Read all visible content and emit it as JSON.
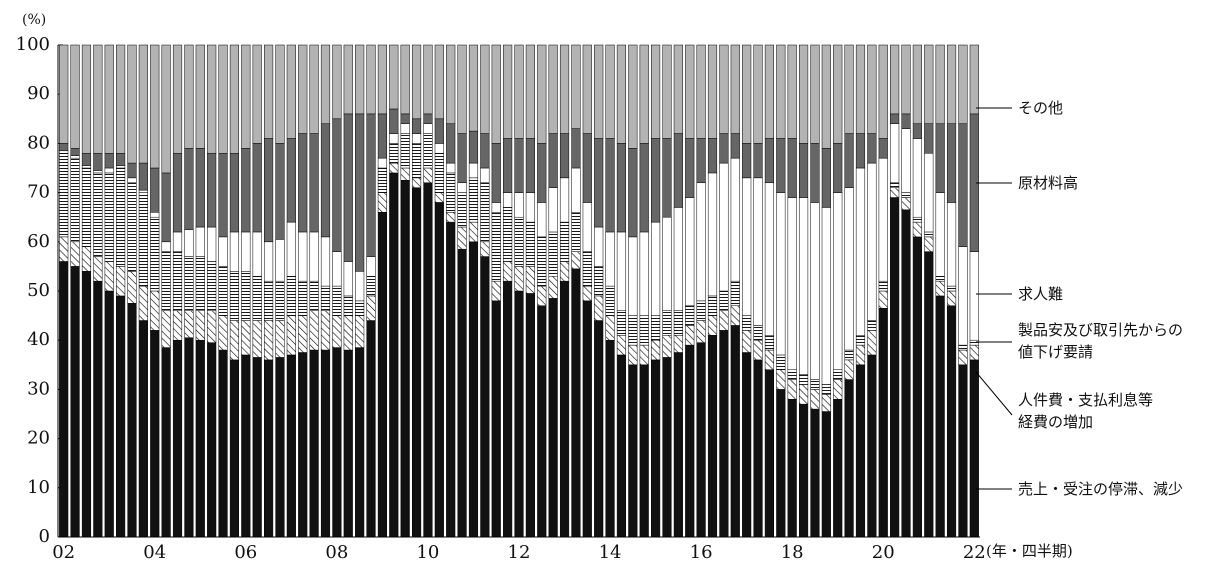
{
  "chart_data": {
    "type": "stacked_bar",
    "y_label": "(%)",
    "x_label": "(年・四半期)",
    "categories": [
      "02",
      null,
      null,
      null,
      null,
      null,
      null,
      null,
      "04",
      null,
      null,
      null,
      null,
      null,
      null,
      null,
      "06",
      null,
      null,
      null,
      null,
      null,
      null,
      null,
      "08",
      null,
      null,
      null,
      null,
      null,
      null,
      null,
      "10",
      null,
      null,
      null,
      null,
      null,
      null,
      null,
      "12",
      null,
      null,
      null,
      null,
      null,
      null,
      null,
      "14",
      null,
      null,
      null,
      null,
      null,
      null,
      null,
      "16",
      null,
      null,
      null,
      null,
      null,
      null,
      null,
      "18",
      null,
      null,
      null,
      null,
      null,
      null,
      null,
      "20",
      null,
      null,
      null,
      null,
      null,
      null,
      null,
      "22"
    ],
    "ylim": [
      0,
      100
    ],
    "yticks": [
      0,
      10,
      20,
      30,
      40,
      50,
      60,
      70,
      80,
      90,
      100
    ],
    "series": [
      {
        "name": "売上・受注の停滞、減少",
        "color": "#111111",
        "pattern": "solid",
        "values": [
          56,
          55,
          54,
          52,
          50,
          49,
          47.5,
          44,
          42,
          38.5,
          40,
          40.5,
          40,
          39.5,
          38,
          36,
          37,
          36.5,
          36,
          36.5,
          37,
          37.5,
          38,
          38,
          38.5,
          38,
          38.5,
          44,
          66,
          74,
          72.5,
          71,
          72,
          68,
          64,
          58.5,
          60,
          57,
          48,
          52,
          50,
          49.5,
          47,
          48.5,
          52,
          54.5,
          48,
          44,
          40,
          37,
          35,
          35,
          36,
          36.5,
          37.5,
          39,
          39.5,
          41,
          42,
          43,
          37.5,
          36,
          34,
          30,
          28,
          27,
          26,
          25.5,
          28,
          32,
          35,
          37,
          46.5,
          69,
          66.5,
          61,
          58,
          49,
          47,
          35,
          36
        ]
      },
      {
        "name": "人件費・支払利息等\n経費の増加",
        "color": "#ffffff",
        "pattern": "diagonal",
        "values": [
          5,
          5,
          5,
          5,
          6,
          6,
          6.5,
          7,
          8,
          7.5,
          6,
          5.5,
          6,
          6.5,
          7,
          8,
          7,
          7.5,
          8,
          7.5,
          8,
          7.5,
          8,
          8,
          6.5,
          7,
          6.5,
          5,
          4,
          2,
          2.5,
          2,
          3,
          2,
          2,
          4.5,
          4,
          3,
          4,
          4,
          5,
          5.5,
          4,
          4.5,
          4,
          3.5,
          3,
          5,
          5,
          4,
          4,
          4,
          4,
          4.5,
          3.5,
          4,
          4.5,
          4,
          4,
          4,
          4.5,
          4,
          4,
          4,
          4,
          4,
          4,
          3.5,
          4,
          4,
          4,
          5,
          3.5,
          2,
          2.5,
          3,
          3,
          3,
          3,
          3,
          3
        ]
      },
      {
        "name": "製品安及び取引先からの\n値下げ要請",
        "color": "#ffffff",
        "pattern": "horizontal",
        "values": [
          17,
          17,
          16,
          17,
          18,
          20,
          18,
          19,
          15,
          12,
          12,
          11,
          11,
          10,
          10,
          10,
          10,
          9,
          8,
          8,
          8,
          7,
          6,
          5,
          6,
          4,
          3,
          4,
          5,
          4,
          7,
          7,
          7,
          8,
          8,
          7,
          9,
          12,
          14,
          11,
          10,
          9,
          10,
          9,
          8,
          8,
          7,
          6,
          6,
          5,
          6,
          6,
          5,
          5,
          5,
          4,
          4,
          4,
          4,
          5,
          3,
          3,
          3,
          3,
          2,
          2,
          2,
          2,
          2,
          2,
          2,
          2,
          2,
          1,
          1,
          1,
          1,
          1,
          1,
          1,
          1
        ]
      },
      {
        "name": "求人難",
        "color": "#ffffff",
        "pattern": "solid",
        "values": [
          0.5,
          0.5,
          0.5,
          0.5,
          1,
          0.5,
          1,
          0.5,
          1,
          2,
          4,
          5.5,
          6,
          7,
          6,
          8,
          8,
          9,
          8,
          8.5,
          11,
          10,
          10,
          10,
          7,
          7,
          6,
          4,
          2,
          2,
          2,
          2,
          2,
          2,
          2,
          2,
          3,
          3,
          2,
          3,
          5,
          6,
          7,
          9,
          9,
          9,
          10,
          8,
          11,
          16,
          16,
          17,
          19,
          19,
          21,
          22,
          24,
          25,
          26,
          25,
          28,
          30,
          31,
          33,
          35,
          36,
          36,
          36,
          36,
          33,
          34,
          32,
          25,
          12,
          13,
          16,
          16,
          17,
          17,
          20,
          18
        ]
      },
      {
        "name": "原材料高",
        "color": "#666666",
        "pattern": "solid",
        "values": [
          1.5,
          1.5,
          2.5,
          3.5,
          3,
          2.5,
          3,
          5.5,
          9,
          14,
          16,
          16.5,
          16,
          15,
          17,
          16,
          17,
          18,
          21,
          19.5,
          17,
          20,
          20,
          23,
          27,
          30,
          32,
          29,
          9,
          5,
          2,
          3,
          2,
          5,
          8,
          10,
          6.5,
          7,
          12,
          11,
          11,
          11,
          12,
          11,
          9,
          8,
          14,
          18,
          19,
          18,
          18,
          18,
          17,
          16,
          15,
          12,
          9,
          7,
          6,
          5,
          7,
          7,
          9,
          11,
          12,
          11,
          12,
          12,
          10,
          11,
          7,
          6,
          4,
          2,
          3,
          3,
          6,
          14,
          16,
          25,
          28
        ]
      },
      {
        "name": "その他",
        "color": "#b3b3b3",
        "pattern": "solid",
        "values": [
          20,
          21,
          22,
          22,
          22,
          22,
          24,
          24,
          25,
          26,
          22,
          21,
          21,
          22,
          22,
          22,
          21,
          20,
          19,
          20,
          19,
          18,
          18,
          16,
          15,
          14,
          14,
          14,
          14,
          13,
          14,
          15,
          14,
          15,
          16,
          18,
          17.5,
          18,
          20,
          19,
          19,
          19,
          20,
          18,
          18,
          17,
          18,
          19,
          19,
          20,
          21,
          20,
          19,
          19,
          18,
          19,
          19,
          19,
          18,
          18,
          20,
          20,
          19,
          19,
          19,
          20,
          20,
          21,
          20,
          18,
          18,
          18,
          19,
          14,
          14,
          16,
          16,
          16,
          16,
          16,
          14
        ]
      }
    ]
  }
}
